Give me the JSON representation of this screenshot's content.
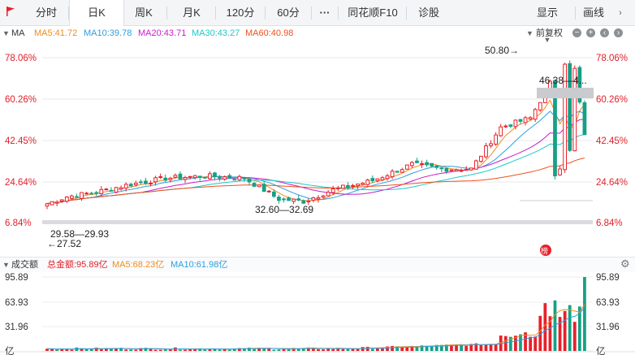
{
  "toolbar": {
    "tabs": [
      {
        "label": "分时",
        "active": false
      },
      {
        "label": "日K",
        "active": true
      },
      {
        "label": "周K",
        "active": false
      },
      {
        "label": "月K",
        "active": false
      },
      {
        "label": "120分",
        "active": false
      },
      {
        "label": "60分",
        "active": false
      },
      {
        "label": "···",
        "active": false
      },
      {
        "label": "同花顺F10",
        "active": false
      },
      {
        "label": "诊股",
        "active": false
      }
    ],
    "display_label": "显示",
    "draw_label": "画线"
  },
  "ma_header": {
    "name": "MA",
    "items": [
      {
        "text": "MA5:41.72",
        "color": "#f08c1e"
      },
      {
        "text": "MA10:39.78",
        "color": "#2a9fe0"
      },
      {
        "text": "MA20:43.71",
        "color": "#c81ec8"
      },
      {
        "text": "MA30:43.27",
        "color": "#1ec8c8"
      },
      {
        "text": "MA60:40.98",
        "color": "#f0501e"
      }
    ],
    "adjust_label": "前复权"
  },
  "volume_header": {
    "name": "成交额",
    "items": [
      {
        "text": "总金额:95.89亿",
        "color": "#e0202a"
      },
      {
        "text": "MA5:68.23亿",
        "color": "#f08c1e"
      },
      {
        "text": "MA10:61.98亿",
        "color": "#2a9fe0"
      }
    ]
  },
  "chart_data": {
    "type": "candlestick",
    "price_axis_labels": [
      "78.06%",
      "60.26%",
      "42.45%",
      "24.64%",
      "6.84%"
    ],
    "price_axis_range": [
      6.84,
      78.06
    ],
    "volume_axis_labels": [
      "95.89",
      "63.93",
      "31.96",
      "亿"
    ],
    "volume_axis_range": [
      0,
      95.89
    ],
    "annotations": {
      "high": "50.80→",
      "range_top": "46.38—4...",
      "range_mid": "32.60—32.69",
      "range_low": "29.58—29.93",
      "low": "←27.52"
    },
    "seal_text": "榜",
    "colors": {
      "up": "#e8202a",
      "down": "#16a085",
      "ma5": "#f08c1e",
      "ma10": "#2a9fe0",
      "ma20": "#c81ec8",
      "ma30": "#1ec8c8",
      "ma60": "#f0501e"
    }
  }
}
